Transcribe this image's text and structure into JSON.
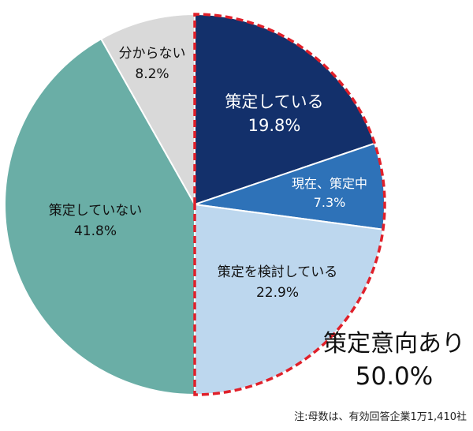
{
  "chart_data": {
    "type": "pie",
    "start_angle_deg": 0,
    "direction": "clockwise",
    "slices": [
      {
        "label": "策定している",
        "value": 19.8,
        "value_label": "19.8%",
        "color": "#13306b",
        "text_color": "#ffffff"
      },
      {
        "label": "現在、策定中",
        "value": 7.3,
        "value_label": "7.3%",
        "color": "#2e72b8",
        "text_color": "#ffffff"
      },
      {
        "label": "策定を検討している",
        "value": 22.9,
        "value_label": "22.9%",
        "color": "#bdd7ee",
        "text_color": "#111111"
      },
      {
        "label": "策定していない",
        "value": 41.8,
        "value_label": "41.8%",
        "color": "#6aaea6",
        "text_color": "#111111"
      },
      {
        "label": "分からない",
        "value": 8.2,
        "value_label": "8.2%",
        "color": "#d9d9d9",
        "text_color": "#111111"
      }
    ],
    "highlight": {
      "label": "策定意向あり",
      "value": 50.0,
      "value_label": "50.0%",
      "color": "#e0202a",
      "style": "dashed"
    },
    "note": "注:母数は、有効回答企業1万1,410社"
  }
}
